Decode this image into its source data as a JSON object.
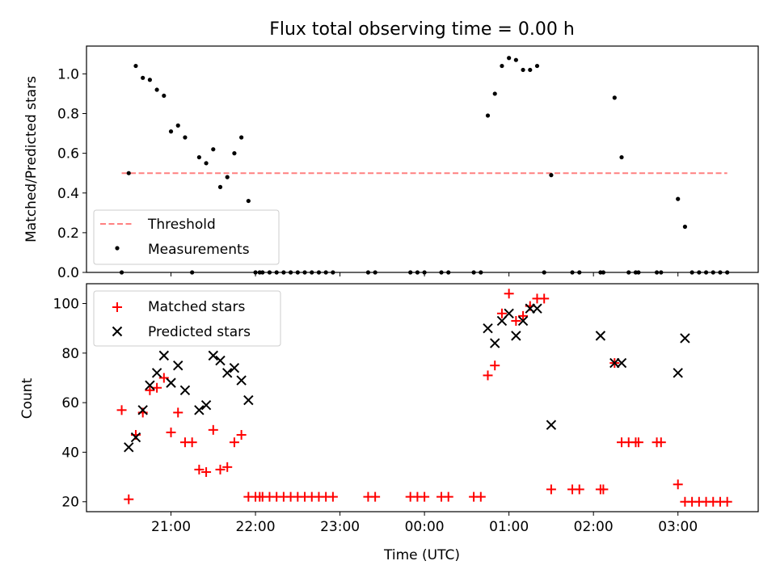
{
  "figure": {
    "title": "Flux total observing time = 0.00 h"
  },
  "chart_data": [
    {
      "type": "scatter",
      "panel": "top",
      "title": "Flux total observing time = 0.00 h",
      "xlabel": "",
      "ylabel": "Matched/Predicted stars",
      "xlim_hours": [
        20.0,
        27.95
      ],
      "ylim": [
        0,
        1.14
      ],
      "yticks": [
        0.0,
        0.2,
        0.4,
        0.6,
        0.8,
        1.0
      ],
      "ytick_labels": [
        "0.0",
        "0.2",
        "0.4",
        "0.6",
        "0.8",
        "1.0"
      ],
      "legend": {
        "position": "lower-left",
        "entries": [
          {
            "label": "Threshold",
            "style": "dashed-line",
            "color": "#ff8080"
          },
          {
            "label": "Measurements",
            "style": "dot",
            "color": "#000000"
          }
        ]
      },
      "series": [
        {
          "name": "Threshold",
          "kind": "hline",
          "color": "#ff8080",
          "x": [
            "20:25",
            "03:35"
          ],
          "y": [
            0.5,
            0.5
          ]
        },
        {
          "name": "Measurements",
          "kind": "scatter",
          "color": "#000000",
          "x": [
            "20:25",
            "20:30",
            "20:35",
            "20:40",
            "20:45",
            "20:50",
            "20:55",
            "21:00",
            "21:05",
            "21:10",
            "21:15",
            "21:20",
            "21:25",
            "21:30",
            "21:35",
            "21:40",
            "21:45",
            "21:50",
            "21:55",
            "22:00",
            "22:03",
            "22:05",
            "22:10",
            "22:15",
            "22:20",
            "22:25",
            "22:30",
            "22:35",
            "22:40",
            "22:45",
            "22:50",
            "22:55",
            "23:20",
            "23:25",
            "23:50",
            "23:55",
            "00:00",
            "00:12",
            "00:17",
            "00:35",
            "00:40",
            "00:45",
            "00:50",
            "00:55",
            "01:00",
            "01:05",
            "01:10",
            "01:15",
            "01:20",
            "01:25",
            "01:30",
            "01:45",
            "01:50",
            "02:05",
            "02:07",
            "02:15",
            "02:20",
            "02:25",
            "02:30",
            "02:32",
            "02:45",
            "02:48",
            "03:00",
            "03:05",
            "03:10",
            "03:15",
            "03:20",
            "03:25",
            "03:30",
            "03:35"
          ],
          "values": [
            0.0,
            0.5,
            1.04,
            0.98,
            0.97,
            0.92,
            0.89,
            0.71,
            0.74,
            0.68,
            0.0,
            0.58,
            0.55,
            0.62,
            0.43,
            0.48,
            0.6,
            0.68,
            0.36,
            0.0,
            0.0,
            0.0,
            0.0,
            0.0,
            0.0,
            0.0,
            0.0,
            0.0,
            0.0,
            0.0,
            0.0,
            0.0,
            0.0,
            0.0,
            0.0,
            0.0,
            0.0,
            0.0,
            0.0,
            0.0,
            0.0,
            0.79,
            0.9,
            1.04,
            1.08,
            1.07,
            1.02,
            1.02,
            1.04,
            0.0,
            0.49,
            0.0,
            0.0,
            0.0,
            0.0,
            0.88,
            0.58,
            0.0,
            0.0,
            0.0,
            0.0,
            0.0,
            0.37,
            0.23,
            0.0,
            0.0,
            0.0,
            0.0,
            0.0,
            0.0
          ]
        }
      ]
    },
    {
      "type": "scatter",
      "panel": "bottom",
      "xlabel": "Time (UTC)",
      "ylabel": "Count",
      "xlim_hours": [
        20.0,
        27.95
      ],
      "ylim": [
        16,
        108
      ],
      "xticks": [
        "21:00",
        "22:00",
        "23:00",
        "00:00",
        "01:00",
        "02:00",
        "03:00"
      ],
      "yticks": [
        20,
        40,
        60,
        80,
        100
      ],
      "ytick_labels": [
        "20",
        "40",
        "60",
        "80",
        "100"
      ],
      "legend": {
        "position": "upper-left",
        "entries": [
          {
            "label": "Matched stars",
            "style": "plus",
            "color": "#ff0000"
          },
          {
            "label": "Predicted stars",
            "style": "x",
            "color": "#000000"
          }
        ]
      },
      "series": [
        {
          "name": "Matched stars",
          "marker": "plus",
          "color": "#ff0000",
          "x": [
            "20:25",
            "20:30",
            "20:35",
            "20:40",
            "20:45",
            "20:50",
            "20:55",
            "21:00",
            "21:05",
            "21:10",
            "21:15",
            "21:20",
            "21:25",
            "21:30",
            "21:35",
            "21:40",
            "21:45",
            "21:50",
            "21:55",
            "22:00",
            "22:03",
            "22:05",
            "22:10",
            "22:15",
            "22:20",
            "22:25",
            "22:30",
            "22:35",
            "22:40",
            "22:45",
            "22:50",
            "22:55",
            "23:20",
            "23:25",
            "23:50",
            "23:55",
            "00:00",
            "00:12",
            "00:17",
            "00:35",
            "00:40",
            "00:45",
            "00:50",
            "00:55",
            "01:00",
            "01:05",
            "01:10",
            "01:15",
            "01:20",
            "01:25",
            "01:30",
            "01:45",
            "01:50",
            "02:05",
            "02:07",
            "02:15",
            "02:20",
            "02:25",
            "02:30",
            "02:32",
            "02:45",
            "02:48",
            "03:00",
            "03:05",
            "03:10",
            "03:15",
            "03:20",
            "03:25",
            "03:30",
            "03:35"
          ],
          "values": [
            57,
            21,
            47,
            56,
            65,
            66,
            70,
            48,
            56,
            44,
            44,
            33,
            32,
            49,
            33,
            34,
            44,
            47,
            22,
            22,
            22,
            22,
            22,
            22,
            22,
            22,
            22,
            22,
            22,
            22,
            22,
            22,
            22,
            22,
            22,
            22,
            22,
            22,
            22,
            22,
            22,
            71,
            75,
            96,
            104,
            93,
            95,
            99,
            102,
            102,
            25,
            25,
            25,
            25,
            25,
            76,
            44,
            44,
            44,
            44,
            44,
            44,
            27,
            20,
            20,
            20,
            20,
            20,
            20,
            20
          ]
        },
        {
          "name": "Predicted stars",
          "marker": "x",
          "color": "#000000",
          "x": [
            "20:30",
            "20:35",
            "20:40",
            "20:45",
            "20:50",
            "20:55",
            "21:00",
            "21:05",
            "21:10",
            "21:20",
            "21:25",
            "21:30",
            "21:35",
            "21:40",
            "21:45",
            "21:50",
            "21:55",
            "00:45",
            "00:50",
            "00:55",
            "01:00",
            "01:05",
            "01:10",
            "01:15",
            "01:20",
            "01:30",
            "02:05",
            "02:15",
            "02:20",
            "03:00",
            "03:05"
          ],
          "values": [
            42,
            46,
            57,
            67,
            72,
            79,
            68,
            75,
            65,
            57,
            59,
            79,
            77,
            72,
            74,
            69,
            61,
            90,
            84,
            93,
            96,
            87,
            93,
            98,
            98,
            51,
            87,
            76,
            76,
            72,
            86
          ]
        }
      ]
    }
  ]
}
